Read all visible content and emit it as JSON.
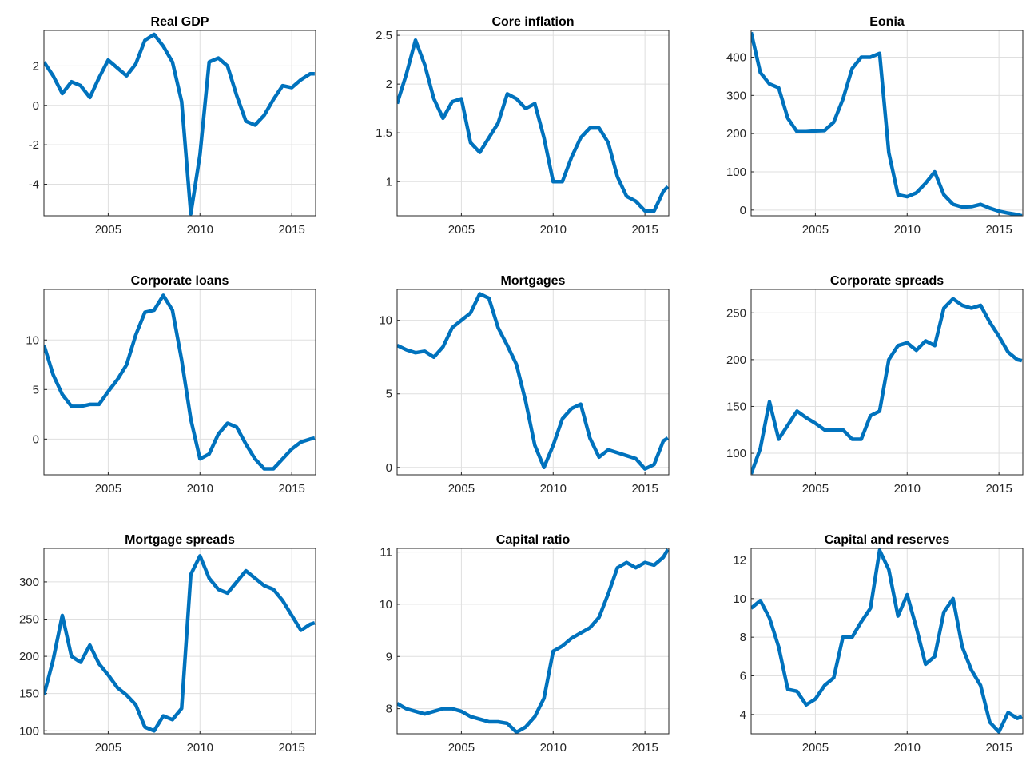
{
  "chart_data": [
    {
      "type": "line",
      "title": "Real GDP",
      "color": "#0072bd",
      "grid": true,
      "x": [
        2001.5,
        2002,
        2002.5,
        2003,
        2003.5,
        2004,
        2004.5,
        2005,
        2005.5,
        2006,
        2006.5,
        2007,
        2007.5,
        2008,
        2008.5,
        2009,
        2009.5,
        2010,
        2010.5,
        2011,
        2011.5,
        2012,
        2012.5,
        2013,
        2013.5,
        2014,
        2014.5,
        2015,
        2015.5,
        2016,
        2016.25
      ],
      "values": [
        2.2,
        1.5,
        0.6,
        1.2,
        1.0,
        0.4,
        1.4,
        2.3,
        1.9,
        1.5,
        2.1,
        3.3,
        3.6,
        3.0,
        2.2,
        0.2,
        -5.5,
        -2.5,
        2.2,
        2.4,
        2.0,
        0.5,
        -0.8,
        -1.0,
        -0.5,
        0.3,
        1.0,
        0.9,
        1.3,
        1.6,
        1.6
      ],
      "xlim": [
        2001.5,
        2016.3
      ],
      "xticks": [
        2005,
        2010,
        2015
      ],
      "ylim": [
        -5.6,
        3.8
      ],
      "yticks": [
        -4,
        -2,
        0,
        2
      ]
    },
    {
      "type": "line",
      "title": "Core inflation",
      "color": "#0072bd",
      "grid": true,
      "x": [
        2001.5,
        2002,
        2002.5,
        2003,
        2003.5,
        2004,
        2004.5,
        2005,
        2005.5,
        2006,
        2006.5,
        2007,
        2007.5,
        2008,
        2008.5,
        2009,
        2009.5,
        2010,
        2010.5,
        2011,
        2011.5,
        2012,
        2012.5,
        2013,
        2013.5,
        2014,
        2014.5,
        2015,
        2015.5,
        2016,
        2016.25
      ],
      "values": [
        1.8,
        2.1,
        2.45,
        2.2,
        1.85,
        1.65,
        1.82,
        1.85,
        1.4,
        1.3,
        1.45,
        1.6,
        1.9,
        1.85,
        1.75,
        1.8,
        1.45,
        1.0,
        1.0,
        1.25,
        1.45,
        1.55,
        1.55,
        1.4,
        1.05,
        0.85,
        0.8,
        0.7,
        0.7,
        0.9,
        0.95
      ],
      "xlim": [
        2001.5,
        2016.3
      ],
      "xticks": [
        2005,
        2010,
        2015
      ],
      "ylim": [
        0.65,
        2.55
      ],
      "yticks": [
        1,
        1.5,
        2,
        2.5
      ]
    },
    {
      "type": "line",
      "title": "Eonia",
      "color": "#0072bd",
      "grid": true,
      "x": [
        2001.5,
        2002,
        2002.5,
        2003,
        2003.5,
        2004,
        2004.5,
        2005,
        2005.5,
        2006,
        2006.5,
        2007,
        2007.5,
        2008,
        2008.5,
        2009,
        2009.5,
        2010,
        2010.5,
        2011,
        2011.5,
        2012,
        2012.5,
        2013,
        2013.5,
        2014,
        2014.5,
        2015,
        2015.5,
        2016,
        2016.25
      ],
      "values": [
        465,
        360,
        330,
        320,
        240,
        205,
        205,
        207,
        208,
        230,
        290,
        370,
        400,
        400,
        410,
        150,
        40,
        35,
        45,
        70,
        100,
        40,
        15,
        8,
        9,
        15,
        5,
        -3,
        -8,
        -12,
        -15
      ],
      "xlim": [
        2001.5,
        2016.3
      ],
      "xticks": [
        2005,
        2010,
        2015
      ],
      "ylim": [
        -15,
        470
      ],
      "yticks": [
        0,
        100,
        200,
        300,
        400
      ]
    },
    {
      "type": "line",
      "title": "Corporate loans",
      "color": "#0072bd",
      "grid": true,
      "x": [
        2001.5,
        2002,
        2002.5,
        2003,
        2003.5,
        2004,
        2004.5,
        2005,
        2005.5,
        2006,
        2006.5,
        2007,
        2007.5,
        2008,
        2008.5,
        2009,
        2009.5,
        2010,
        2010.5,
        2011,
        2011.5,
        2012,
        2012.5,
        2013,
        2013.5,
        2014,
        2014.5,
        2015,
        2015.5,
        2016,
        2016.25
      ],
      "values": [
        9.5,
        6.5,
        4.5,
        3.3,
        3.3,
        3.5,
        3.5,
        4.8,
        6.0,
        7.5,
        10.5,
        12.8,
        13.0,
        14.5,
        13.0,
        8.0,
        2.0,
        -2.0,
        -1.5,
        0.5,
        1.6,
        1.2,
        -0.5,
        -2.0,
        -3.0,
        -3.0,
        -2.0,
        -1.0,
        -0.3,
        0,
        0.1
      ],
      "xlim": [
        2001.5,
        2016.3
      ],
      "xticks": [
        2005,
        2010,
        2015
      ],
      "ylim": [
        -3.6,
        15.1
      ],
      "yticks": [
        0,
        5,
        10
      ]
    },
    {
      "type": "line",
      "title": "Mortgages",
      "color": "#0072bd",
      "grid": true,
      "x": [
        2001.5,
        2002,
        2002.5,
        2003,
        2003.5,
        2004,
        2004.5,
        2005,
        2005.5,
        2006,
        2006.5,
        2007,
        2007.5,
        2008,
        2008.5,
        2009,
        2009.5,
        2010,
        2010.5,
        2011,
        2011.5,
        2012,
        2012.5,
        2013,
        2013.5,
        2014,
        2014.5,
        2015,
        2015.5,
        2016,
        2016.25
      ],
      "values": [
        8.3,
        8.0,
        7.8,
        7.9,
        7.5,
        8.2,
        9.5,
        10.0,
        10.5,
        11.8,
        11.5,
        9.5,
        8.3,
        7.0,
        4.5,
        1.5,
        0.0,
        1.5,
        3.3,
        4.0,
        4.3,
        2.0,
        0.7,
        1.2,
        1.0,
        0.8,
        0.6,
        -0.1,
        0.2,
        1.8,
        2.0
      ],
      "xlim": [
        2001.5,
        2016.3
      ],
      "xticks": [
        2005,
        2010,
        2015
      ],
      "ylim": [
        -0.5,
        12.1
      ],
      "yticks": [
        0,
        5,
        10
      ]
    },
    {
      "type": "line",
      "title": "Corporate spreads",
      "color": "#0072bd",
      "grid": true,
      "x": [
        2001.5,
        2002,
        2002.5,
        2003,
        2003.5,
        2004,
        2004.5,
        2005,
        2005.5,
        2006,
        2006.5,
        2007,
        2007.5,
        2008,
        2008.5,
        2009,
        2009.5,
        2010,
        2010.5,
        2011,
        2011.5,
        2012,
        2012.5,
        2013,
        2013.5,
        2014,
        2014.5,
        2015,
        2015.5,
        2016,
        2016.25
      ],
      "values": [
        78,
        105,
        155,
        115,
        130,
        145,
        138,
        132,
        125,
        125,
        125,
        115,
        115,
        140,
        145,
        200,
        215,
        218,
        210,
        220,
        215,
        255,
        265,
        258,
        255,
        258,
        240,
        225,
        208,
        200,
        199
      ],
      "xlim": [
        2001.5,
        2016.3
      ],
      "xticks": [
        2005,
        2010,
        2015
      ],
      "ylim": [
        77,
        275
      ],
      "yticks": [
        100,
        150,
        200,
        250
      ]
    },
    {
      "type": "line",
      "title": "Mortgage spreads",
      "color": "#0072bd",
      "grid": true,
      "x": [
        2001.5,
        2002,
        2002.5,
        2003,
        2003.5,
        2004,
        2004.5,
        2005,
        2005.5,
        2006,
        2006.5,
        2007,
        2007.5,
        2008,
        2008.5,
        2009,
        2009.5,
        2010,
        2010.5,
        2011,
        2011.5,
        2012,
        2012.5,
        2013,
        2013.5,
        2014,
        2014.5,
        2015,
        2015.5,
        2016,
        2016.25
      ],
      "values": [
        148,
        195,
        255,
        200,
        192,
        215,
        190,
        175,
        158,
        148,
        135,
        105,
        100,
        120,
        115,
        130,
        310,
        335,
        305,
        290,
        285,
        300,
        315,
        305,
        295,
        290,
        275,
        255,
        235,
        243,
        245
      ],
      "xlim": [
        2001.5,
        2016.3
      ],
      "xticks": [
        2005,
        2010,
        2015
      ],
      "ylim": [
        96,
        345
      ],
      "yticks": [
        100,
        150,
        200,
        250,
        300
      ]
    },
    {
      "type": "line",
      "title": "Capital ratio",
      "color": "#0072bd",
      "grid": true,
      "x": [
        2001.5,
        2002,
        2002.5,
        2003,
        2003.5,
        2004,
        2004.5,
        2005,
        2005.5,
        2006,
        2006.5,
        2007,
        2007.5,
        2008,
        2008.5,
        2009,
        2009.5,
        2010,
        2010.5,
        2011,
        2011.5,
        2012,
        2012.5,
        2013,
        2013.5,
        2014,
        2014.5,
        2015,
        2015.5,
        2016,
        2016.25
      ],
      "values": [
        8.1,
        8.0,
        7.95,
        7.9,
        7.95,
        8.0,
        8.0,
        7.95,
        7.85,
        7.8,
        7.75,
        7.75,
        7.72,
        7.55,
        7.65,
        7.85,
        8.2,
        9.1,
        9.2,
        9.35,
        9.45,
        9.55,
        9.75,
        10.2,
        10.7,
        10.8,
        10.7,
        10.8,
        10.75,
        10.9,
        11.05
      ],
      "xlim": [
        2001.5,
        2016.3
      ],
      "xticks": [
        2005,
        2010,
        2015
      ],
      "ylim": [
        7.52,
        11.07
      ],
      "yticks": [
        8,
        9,
        10,
        11
      ]
    },
    {
      "type": "line",
      "title": "Capital and reserves",
      "color": "#0072bd",
      "grid": true,
      "x": [
        2001.5,
        2002,
        2002.5,
        2003,
        2003.5,
        2004,
        2004.5,
        2005,
        2005.5,
        2006,
        2006.5,
        2007,
        2007.5,
        2008,
        2008.5,
        2009,
        2009.5,
        2010,
        2010.5,
        2011,
        2011.5,
        2012,
        2012.5,
        2013,
        2013.5,
        2014,
        2014.5,
        2015,
        2015.5,
        2016,
        2016.25
      ],
      "values": [
        9.5,
        9.9,
        9.0,
        7.5,
        5.3,
        5.2,
        4.5,
        4.8,
        5.5,
        5.9,
        8.0,
        8.0,
        8.8,
        9.5,
        12.5,
        11.5,
        9.1,
        10.2,
        8.5,
        6.6,
        7.0,
        9.3,
        10.0,
        7.5,
        6.3,
        5.5,
        3.6,
        3.1,
        4.1,
        3.8,
        3.9
      ],
      "xlim": [
        2001.5,
        2016.3
      ],
      "xticks": [
        2005,
        2010,
        2015
      ],
      "ylim": [
        3.0,
        12.6
      ],
      "yticks": [
        4,
        6,
        8,
        10,
        12
      ]
    }
  ]
}
